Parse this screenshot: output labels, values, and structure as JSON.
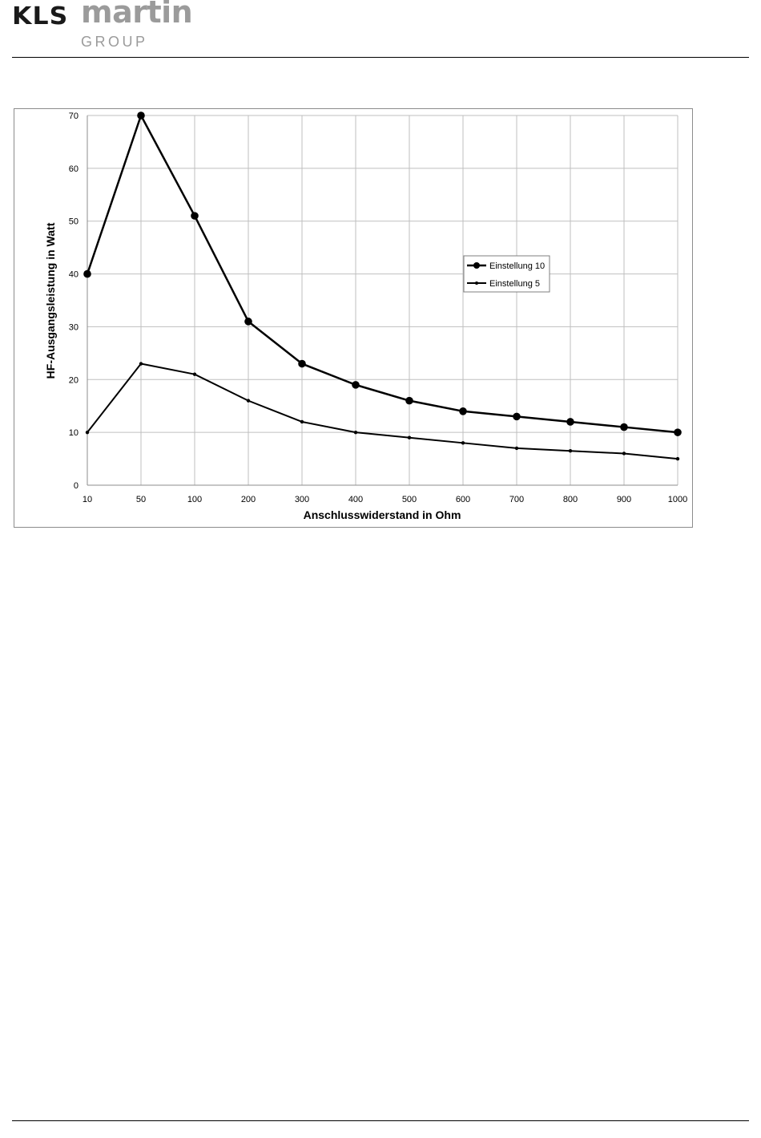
{
  "header": {
    "logo_kls": "KLS",
    "logo_martin": "martin",
    "logo_group": "GROUP"
  },
  "colors": {
    "logo_dark": "#1a1a1a",
    "logo_gray": "#9b9b9b",
    "grid": "#bfbfbf",
    "line": "#000000"
  },
  "chart_data": {
    "type": "line",
    "title": "",
    "xlabel": "Anschlusswiderstand in Ohm",
    "ylabel": "HF-Ausgangsleistung  in Watt",
    "categories": [
      "10",
      "50",
      "100",
      "200",
      "300",
      "400",
      "500",
      "600",
      "700",
      "800",
      "900",
      "1000"
    ],
    "ylim": [
      0,
      70
    ],
    "yticks": [
      "0",
      "10",
      "20",
      "30",
      "40",
      "50",
      "60",
      "70"
    ],
    "grid": true,
    "legend_position": "right-center",
    "series": [
      {
        "name": "Einstellung 10",
        "marker": "large-circle",
        "values": [
          40,
          70,
          51,
          31,
          23,
          19,
          16,
          14,
          13,
          12,
          11,
          10
        ]
      },
      {
        "name": "Einstellung 5",
        "marker": "small-circle",
        "values": [
          10,
          23,
          21,
          16,
          12,
          10,
          9,
          8,
          7,
          6.5,
          6,
          5
        ]
      }
    ]
  }
}
